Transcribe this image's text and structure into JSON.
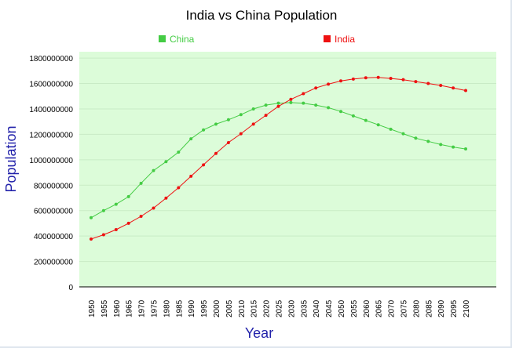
{
  "chart_data": {
    "type": "line",
    "title": "India vs China Population",
    "xlabel": "Year",
    "ylabel": "Population",
    "legend_position": "top",
    "grid": true,
    "plot_background": "#dcfcd9",
    "ylim": [
      0,
      1850000000
    ],
    "yticks": [
      0,
      200000000,
      400000000,
      600000000,
      800000000,
      1000000000,
      1200000000,
      1400000000,
      1600000000,
      1800000000
    ],
    "ytick_labels": [
      "0",
      "200000000",
      "400000000",
      "600000000",
      "800000000",
      "1000000000",
      "1200000000",
      "1400000000",
      "1600000000",
      "1800000000"
    ],
    "x": [
      "1950",
      "1955",
      "1960",
      "1965",
      "1970",
      "1975",
      "1980",
      "1985",
      "1990",
      "1995",
      "2000",
      "2005",
      "2010",
      "2015",
      "2020",
      "2025",
      "2030",
      "2035",
      "2040",
      "2045",
      "2050",
      "2055",
      "2060",
      "2065",
      "2070",
      "2075",
      "2080",
      "2085",
      "2090",
      "2095",
      "2100"
    ],
    "series": [
      {
        "name": "China",
        "color": "#44cc44",
        "values": [
          544000000,
          600000000,
          650000000,
          710000000,
          815000000,
          915000000,
          985000000,
          1060000000,
          1165000000,
          1235000000,
          1280000000,
          1315000000,
          1355000000,
          1400000000,
          1430000000,
          1445000000,
          1450000000,
          1445000000,
          1430000000,
          1410000000,
          1380000000,
          1345000000,
          1310000000,
          1275000000,
          1240000000,
          1205000000,
          1170000000,
          1145000000,
          1120000000,
          1100000000,
          1085000000
        ]
      },
      {
        "name": "India",
        "color": "#ee1111",
        "values": [
          376000000,
          410000000,
          450000000,
          500000000,
          555000000,
          620000000,
          698000000,
          780000000,
          870000000,
          960000000,
          1050000000,
          1135000000,
          1205000000,
          1280000000,
          1350000000,
          1420000000,
          1475000000,
          1520000000,
          1565000000,
          1595000000,
          1620000000,
          1635000000,
          1645000000,
          1648000000,
          1640000000,
          1630000000,
          1615000000,
          1600000000,
          1585000000,
          1565000000,
          1545000000
        ]
      }
    ]
  }
}
